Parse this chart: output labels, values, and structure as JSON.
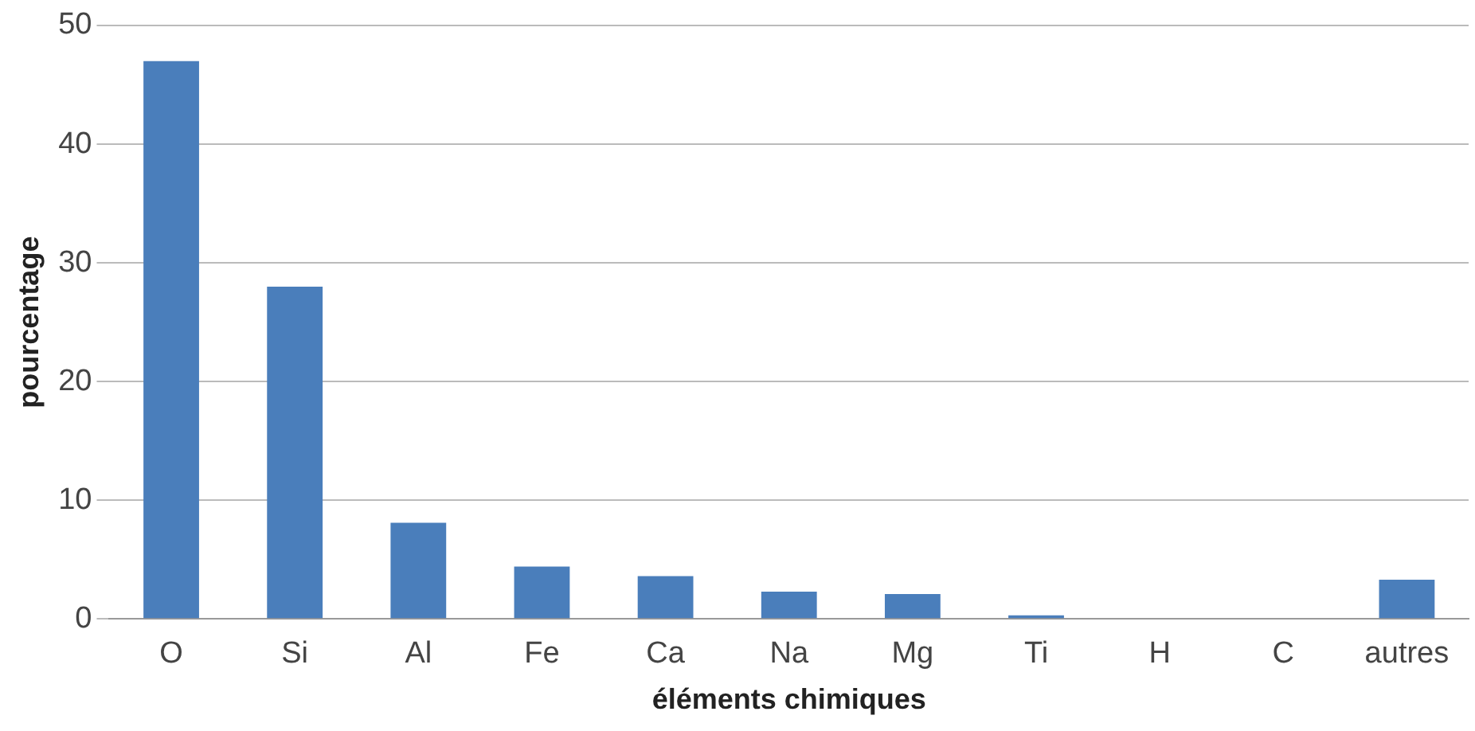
{
  "chart_data": {
    "type": "bar",
    "xlabel": "éléments chimiques",
    "ylabel": "pourcentage",
    "categories": [
      "O",
      "Si",
      "Al",
      "Fe",
      "Ca",
      "Na",
      "Mg",
      "Ti",
      "H",
      "C",
      "autres"
    ],
    "series": [
      {
        "color": "#4a7ebb",
        "values": [
          47,
          28,
          8.1,
          4.4,
          3.6,
          2.3,
          2.1,
          0.3,
          0,
          0,
          3.3
        ]
      }
    ],
    "ylim": [
      0,
      50
    ],
    "yticks": [
      0,
      10,
      20,
      30,
      40,
      50
    ],
    "grid": "y",
    "legend": false
  }
}
